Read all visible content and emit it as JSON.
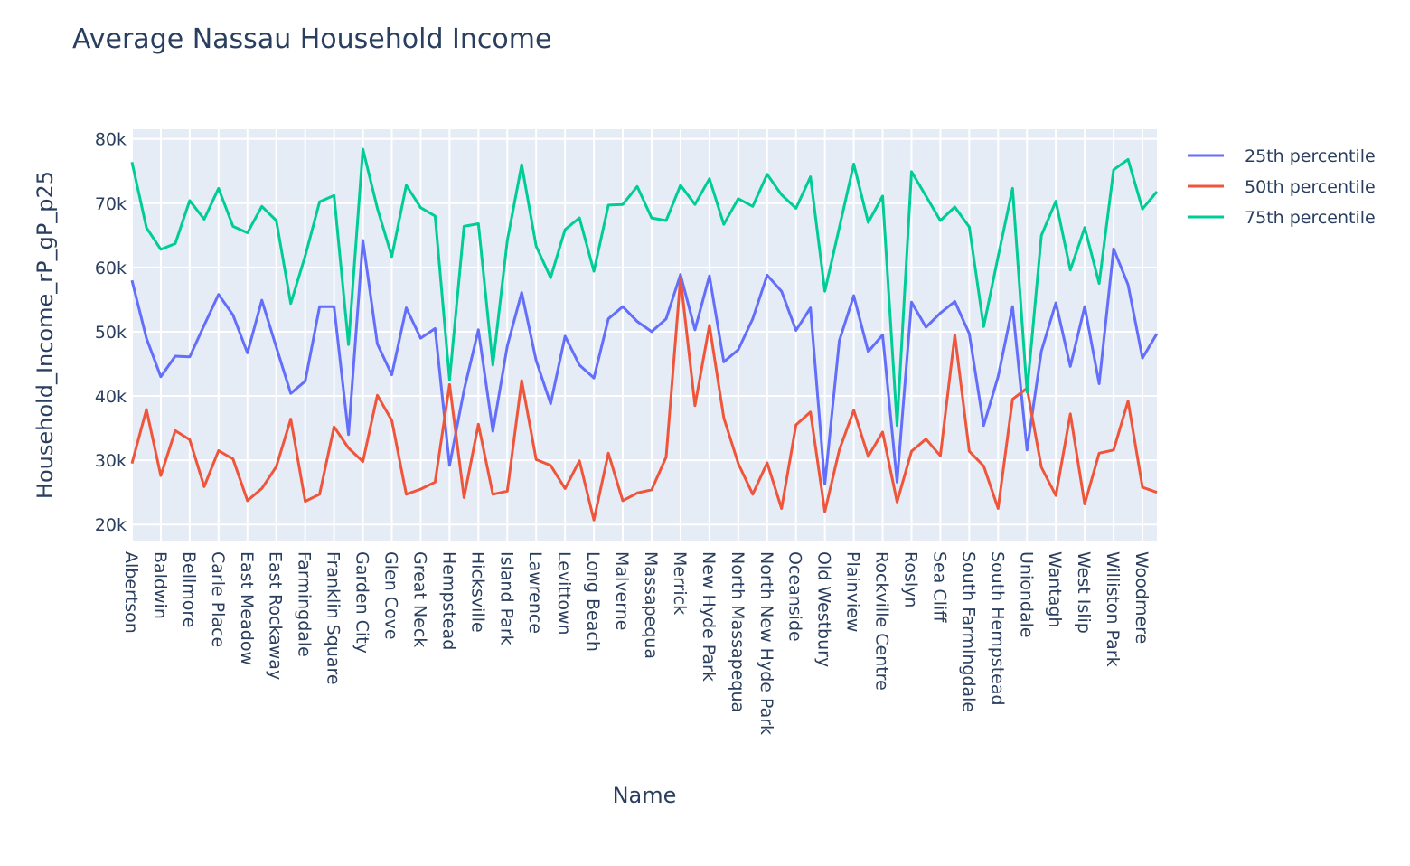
{
  "chart_data": {
    "type": "line",
    "title": "Average Nassau Household Income",
    "xlabel": "Name",
    "ylabel": "Household_Income_rP_gP_p25",
    "ylim": [
      17500,
      81500
    ],
    "y_ticks": [
      20000,
      30000,
      40000,
      50000,
      60000,
      70000,
      80000
    ],
    "y_tick_labels": [
      "20k",
      "30k",
      "40k",
      "50k",
      "60k",
      "70k",
      "80k"
    ],
    "grid": true,
    "legend": "top-right outside plot",
    "x_tick_labels": [
      "Albertson",
      "Baldwin",
      "Bellmore",
      "Carle Place",
      "East Meadow",
      "East Rockaway",
      "Farmingdale",
      "Franklin Square",
      "Garden City",
      "Glen Cove",
      "Great Neck",
      "Hempstead",
      "Hicksville",
      "Island Park",
      "Lawrence",
      "Levittown",
      "Long Beach",
      "Malverne",
      "Massapequa",
      "Merrick",
      "New Hyde Park",
      "North Massapequa",
      "North New Hyde Park",
      "Oceanside",
      "Old Westbury",
      "Plainview",
      "Rockville Centre",
      "Roslyn",
      "Sea Cliff",
      "South Farmingdale",
      "South Hempstead",
      "Uniondale",
      "Wantagh",
      "West Islip",
      "Williston Park",
      "Woodmere"
    ],
    "series": [
      {
        "name": "25th percentile",
        "color": "#636efa",
        "values": [
          58000,
          49000,
          43000,
          46200,
          46100,
          51000,
          55800,
          52600,
          46700,
          54900,
          47600,
          40400,
          42300,
          53900,
          53900,
          34000,
          64200,
          48100,
          43300,
          53700,
          49000,
          50500,
          29200,
          40900,
          50300,
          34500,
          47800,
          56100,
          45500,
          38800,
          49300,
          44800,
          42800,
          52000,
          53900,
          51600,
          50000,
          52000,
          58900,
          50300,
          58700,
          45300,
          47200,
          52000,
          58800,
          56300,
          50200,
          53700,
          26300,
          48600,
          55600,
          46900,
          49500,
          26600,
          54600,
          50700,
          52900,
          54700,
          49700,
          35400,
          43000,
          53900,
          31600,
          47000,
          54500,
          44600,
          53900,
          41900,
          62900,
          57300,
          45900,
          49700
        ]
      },
      {
        "name": "50th percentile",
        "color": "#ef553b",
        "values": [
          29500,
          37900,
          27600,
          34600,
          33200,
          25900,
          31500,
          30200,
          23700,
          25600,
          29000,
          36400,
          23600,
          24700,
          35200,
          31900,
          29800,
          40100,
          36200,
          24700,
          25500,
          26600,
          41800,
          24200,
          35600,
          24700,
          25200,
          42400,
          30100,
          29200,
          25600,
          29900,
          20700,
          31100,
          23700,
          24900,
          25400,
          30500,
          58400,
          38500,
          51000,
          36600,
          29500,
          24700,
          29600,
          22500,
          35500,
          37500,
          22000,
          31600,
          37800,
          30600,
          34400,
          23500,
          31400,
          33300,
          30700,
          49500,
          31400,
          29100,
          22500,
          39500,
          41200,
          28900,
          24500,
          37200,
          23200,
          31100,
          31600,
          39200,
          25800,
          25000
        ]
      },
      {
        "name": "75th percentile",
        "color": "#00cc96",
        "values": [
          76400,
          66200,
          62800,
          63700,
          70400,
          67500,
          72300,
          66400,
          65400,
          69500,
          67300,
          54400,
          61800,
          70200,
          71200,
          48000,
          78400,
          69200,
          61700,
          72800,
          69300,
          68000,
          42500,
          66400,
          66800,
          44800,
          64200,
          76000,
          63300,
          58400,
          65900,
          67700,
          59400,
          69700,
          69800,
          72600,
          67700,
          67300,
          72800,
          69800,
          73800,
          66700,
          70700,
          69500,
          74500,
          71300,
          69200,
          74100,
          56300,
          66200,
          76100,
          67000,
          71100,
          35400,
          74900,
          71100,
          67300,
          69400,
          66300,
          50800,
          61700,
          72300,
          40600,
          65000,
          70300,
          59600,
          66200,
          57500,
          75200,
          76800,
          69100,
          71800
        ]
      }
    ]
  }
}
